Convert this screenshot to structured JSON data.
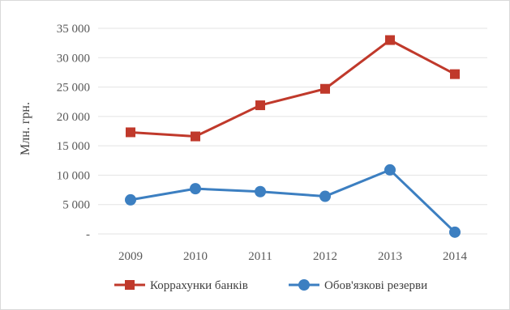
{
  "chart_data": {
    "type": "line",
    "title": "",
    "xlabel": "",
    "ylabel": "Млн. грн.",
    "categories": [
      "2009",
      "2010",
      "2011",
      "2012",
      "2013",
      "2014"
    ],
    "ylim": [
      0,
      35000
    ],
    "yticks": [
      0,
      5000,
      10000,
      15000,
      20000,
      25000,
      30000,
      35000
    ],
    "ytick_labels": [
      "-",
      "5 000",
      "10 000",
      "15 000",
      "20 000",
      "25 000",
      "30 000",
      "35 000"
    ],
    "grid": true,
    "legend_position": "bottom",
    "series": [
      {
        "name": "Коррахунки банків",
        "color": "#c0392b",
        "marker": "square",
        "values": [
          17300,
          16600,
          21900,
          24700,
          33000,
          27200
        ]
      },
      {
        "name": "Обов'язкові резерви",
        "color": "#3c7fc1",
        "marker": "circle",
        "values": [
          5800,
          7700,
          7200,
          6400,
          10900,
          300
        ]
      }
    ]
  }
}
